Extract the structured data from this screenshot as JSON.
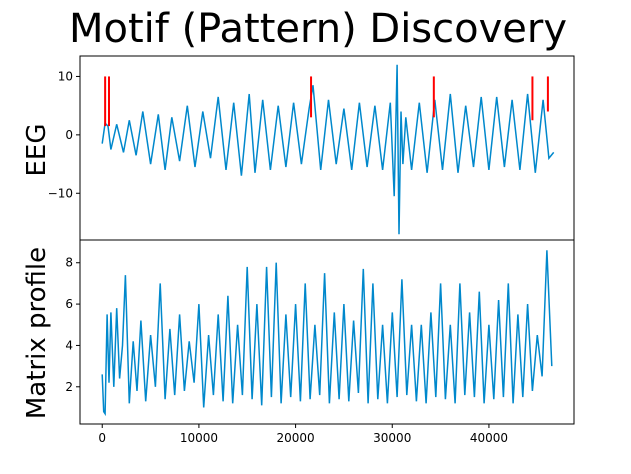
{
  "chart_data": {
    "title": "Motif (Pattern) Discovery",
    "colors": {
      "signal": "#0088cc",
      "motif_marker": "#ff0000",
      "axes": "#000000"
    },
    "xlim": [
      -2300,
      48800
    ],
    "x_ticks": [
      0,
      10000,
      20000,
      30000,
      40000
    ],
    "panels": [
      {
        "type": "line",
        "ylabel": "EEG",
        "ylim": [
          -18,
          13.5
        ],
        "y_ticks": [
          -10,
          0,
          10
        ],
        "series": [
          {
            "x": [
              0,
              300,
              600,
              900,
              1500,
              2200,
              2800,
              3500,
              4200,
              5000,
              5800,
              6500,
              7200,
              8000,
              8800,
              9600,
              10400,
              11200,
              12000,
              12800,
              13600,
              14400,
              15200,
              15800,
              16600,
              17400,
              18200,
              19000,
              19800,
              20600,
              21400,
              21800,
              22600,
              23400,
              24200,
              25000,
              25800,
              26600,
              27400,
              28200,
              29000,
              29800,
              30200,
              30500,
              30700,
              30900,
              31100,
              31400,
              32000,
              32800,
              33600,
              34400,
              35200,
              36000,
              36800,
              37600,
              38400,
              39200,
              40000,
              40800,
              41600,
              42400,
              43200,
              44000,
              44800,
              45600,
              46200,
              46700
            ],
            "y": [
              -1.5,
              2.0,
              1.5,
              -2.5,
              1.8,
              -3.0,
              2.5,
              -3.5,
              4.0,
              -5.0,
              3.5,
              -6.0,
              3.0,
              -4.5,
              5.0,
              -5.5,
              4.0,
              -4.0,
              6.5,
              -6.0,
              5.5,
              -7.0,
              7.0,
              -6.5,
              6.0,
              -6.0,
              5.0,
              -5.5,
              5.5,
              -5.0,
              4.5,
              8.5,
              -6.0,
              6.0,
              -5.0,
              4.5,
              -6.0,
              5.5,
              -5.5,
              5.0,
              -6.0,
              5.5,
              -10.5,
              12.0,
              -17.0,
              4.0,
              -5.0,
              3.0,
              -6.0,
              5.5,
              -6.5,
              6.0,
              -6.0,
              7.0,
              -6.5,
              5.0,
              -5.5,
              6.5,
              -6.0,
              6.5,
              -5.5,
              6.0,
              -6.0,
              7.0,
              -6.5,
              6.0,
              -4.0,
              -3.0
            ]
          }
        ],
        "motif_markers": [
          {
            "x": [
              300,
              700
            ],
            "y": [
              1.5,
              10
            ]
          },
          {
            "x": [
              21600
            ],
            "y": [
              3,
              10
            ]
          },
          {
            "x": [
              34300
            ],
            "y": [
              3,
              10
            ]
          },
          {
            "x": [
              44500
            ],
            "y": [
              2.5,
              10
            ]
          },
          {
            "x": [
              46100
            ],
            "y": [
              4,
              10
            ]
          }
        ]
      },
      {
        "type": "line",
        "ylabel": "Matrix profile",
        "ylim": [
          0.2,
          9.1
        ],
        "y_ticks": [
          2,
          4,
          6,
          8
        ],
        "series": [
          {
            "x": [
              0,
              150,
              300,
              500,
              700,
              900,
              1200,
              1500,
              1800,
              2100,
              2400,
              2800,
              3200,
              3600,
              4000,
              4500,
              5000,
              5500,
              6000,
              6500,
              7000,
              7500,
              8000,
              8500,
              9000,
              9500,
              10000,
              10500,
              11000,
              11500,
              12000,
              12500,
              13000,
              13500,
              14000,
              14500,
              15000,
              15500,
              16000,
              16500,
              17000,
              17500,
              18000,
              18500,
              19000,
              19500,
              20000,
              20500,
              21000,
              21500,
              22000,
              22500,
              23000,
              23500,
              24000,
              24500,
              25000,
              25500,
              26000,
              26500,
              27000,
              27500,
              28000,
              28500,
              29000,
              29500,
              30000,
              30500,
              31000,
              31500,
              32000,
              32500,
              33000,
              33500,
              34000,
              34500,
              35000,
              35500,
              36000,
              36500,
              37000,
              37500,
              38000,
              38500,
              39000,
              39500,
              40000,
              40500,
              41000,
              41500,
              42000,
              42500,
              43000,
              43500,
              44000,
              44500,
              45000,
              45500,
              46000,
              46500
            ],
            "y": [
              2.6,
              0.8,
              0.7,
              5.5,
              2.2,
              5.6,
              2.0,
              5.8,
              2.4,
              4.0,
              7.4,
              1.2,
              4.2,
              1.8,
              5.2,
              1.3,
              4.5,
              2.0,
              7.0,
              1.4,
              4.8,
              1.6,
              5.5,
              1.8,
              4.2,
              2.2,
              6.0,
              1.0,
              4.5,
              1.6,
              5.5,
              1.3,
              6.4,
              1.2,
              5.0,
              1.6,
              7.8,
              1.4,
              6.0,
              1.1,
              7.8,
              1.5,
              8.0,
              1.2,
              5.5,
              1.5,
              6.0,
              1.3,
              7.0,
              1.4,
              5.0,
              1.6,
              7.5,
              1.2,
              5.6,
              1.4,
              6.0,
              1.3,
              5.2,
              1.7,
              7.7,
              1.2,
              7.0,
              1.4,
              5.0,
              1.2,
              5.6,
              1.5,
              7.2,
              1.6,
              5.0,
              1.3,
              5.0,
              1.2,
              5.6,
              1.5,
              7.0,
              1.4,
              5.0,
              1.2,
              7.0,
              1.6,
              5.6,
              1.5,
              6.6,
              1.2,
              5.0,
              1.4,
              6.2,
              1.5,
              7.0,
              1.2,
              5.5,
              1.5,
              6.0,
              1.8,
              4.5,
              2.5,
              8.6,
              3.0
            ]
          }
        ]
      }
    ]
  }
}
